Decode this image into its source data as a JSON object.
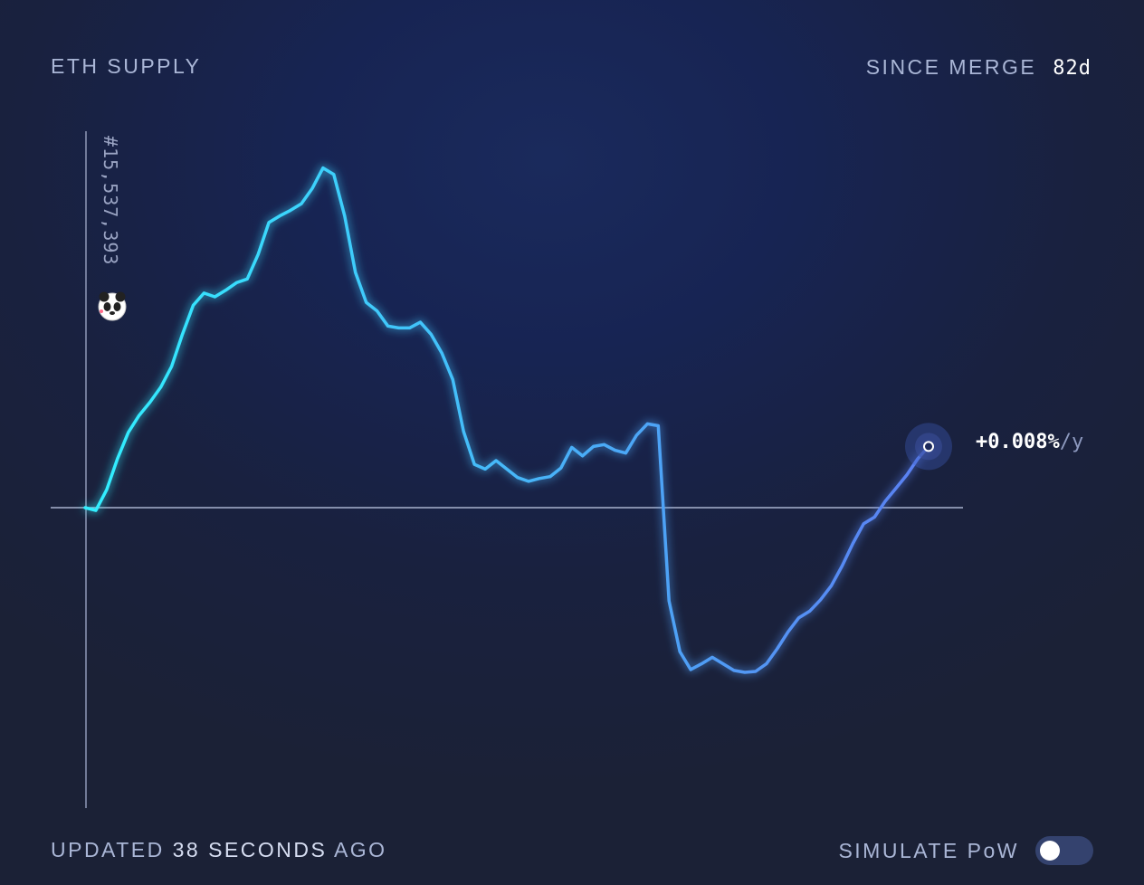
{
  "header": {
    "title": "ETH SUPPLY",
    "since_label": "SINCE MERGE",
    "since_value": "82d"
  },
  "footer": {
    "updated_prefix": "UPDATED",
    "updated_value": "38 SECONDS",
    "updated_suffix": "AGO",
    "simulate_label": "SIMULATE PoW",
    "simulate_pow_enabled": false
  },
  "colors": {
    "line_start": "#31f0ff",
    "line_end": "#5b7ff2",
    "axis": "#8f99b7",
    "background": "#19213f"
  },
  "annotation": {
    "block_label": "#15,537,393",
    "icon": "panda-icon"
  },
  "rate": {
    "value": "+0.008%",
    "unit": "/y"
  },
  "chart_data": {
    "type": "line",
    "title": "ETH SUPPLY",
    "baseline": 0,
    "ylim": [
      -40,
      45
    ],
    "grid": false,
    "series": [
      {
        "values": [
          [
            0,
            0.0
          ],
          [
            1,
            -0.3
          ],
          [
            2,
            1.9
          ],
          [
            3,
            5.2
          ],
          [
            4,
            8.0
          ],
          [
            5,
            9.8
          ],
          [
            6,
            11.2
          ],
          [
            7,
            12.8
          ],
          [
            8,
            15.0
          ],
          [
            9,
            18.4
          ],
          [
            10,
            21.5
          ],
          [
            11,
            22.8
          ],
          [
            12,
            22.4
          ],
          [
            13,
            23.1
          ],
          [
            14,
            23.9
          ],
          [
            15,
            24.3
          ],
          [
            16,
            26.9
          ],
          [
            17,
            30.3
          ],
          [
            18,
            31.0
          ],
          [
            19,
            31.6
          ],
          [
            20,
            32.3
          ],
          [
            21,
            33.9
          ],
          [
            22,
            36.1
          ],
          [
            23,
            35.4
          ],
          [
            24,
            31.0
          ],
          [
            25,
            25.0
          ],
          [
            26,
            21.8
          ],
          [
            27,
            20.9
          ],
          [
            28,
            19.3
          ],
          [
            29,
            19.1
          ],
          [
            30,
            19.1
          ],
          [
            31,
            19.7
          ],
          [
            32,
            18.4
          ],
          [
            33,
            16.4
          ],
          [
            34,
            13.6
          ],
          [
            35,
            8.1
          ],
          [
            36,
            4.6
          ],
          [
            37,
            4.1
          ],
          [
            38,
            5.0
          ],
          [
            39,
            4.1
          ],
          [
            40,
            3.2
          ],
          [
            41,
            2.8
          ],
          [
            42,
            3.1
          ],
          [
            43,
            3.3
          ],
          [
            44,
            4.2
          ],
          [
            45,
            6.4
          ],
          [
            46,
            5.5
          ],
          [
            47,
            6.5
          ],
          [
            48,
            6.7
          ],
          [
            49,
            6.1
          ],
          [
            50,
            5.8
          ],
          [
            51,
            7.7
          ],
          [
            52,
            8.9
          ],
          [
            53,
            8.7
          ],
          [
            54,
            -9.9
          ],
          [
            55,
            -15.3
          ],
          [
            56,
            -17.2
          ],
          [
            57,
            -16.6
          ],
          [
            58,
            -15.9
          ],
          [
            59,
            -16.6
          ],
          [
            60,
            -17.3
          ],
          [
            61,
            -17.5
          ],
          [
            62,
            -17.4
          ],
          [
            63,
            -16.6
          ],
          [
            64,
            -15.0
          ],
          [
            65,
            -13.2
          ],
          [
            66,
            -11.7
          ],
          [
            67,
            -11.0
          ],
          [
            68,
            -9.8
          ],
          [
            69,
            -8.3
          ],
          [
            70,
            -6.2
          ],
          [
            71,
            -3.8
          ],
          [
            72,
            -1.7
          ],
          [
            73,
            -1.0
          ],
          [
            74,
            0.7
          ],
          [
            75,
            2.1
          ],
          [
            76,
            3.5
          ],
          [
            77,
            5.2
          ],
          [
            78,
            6.5
          ]
        ]
      }
    ]
  }
}
